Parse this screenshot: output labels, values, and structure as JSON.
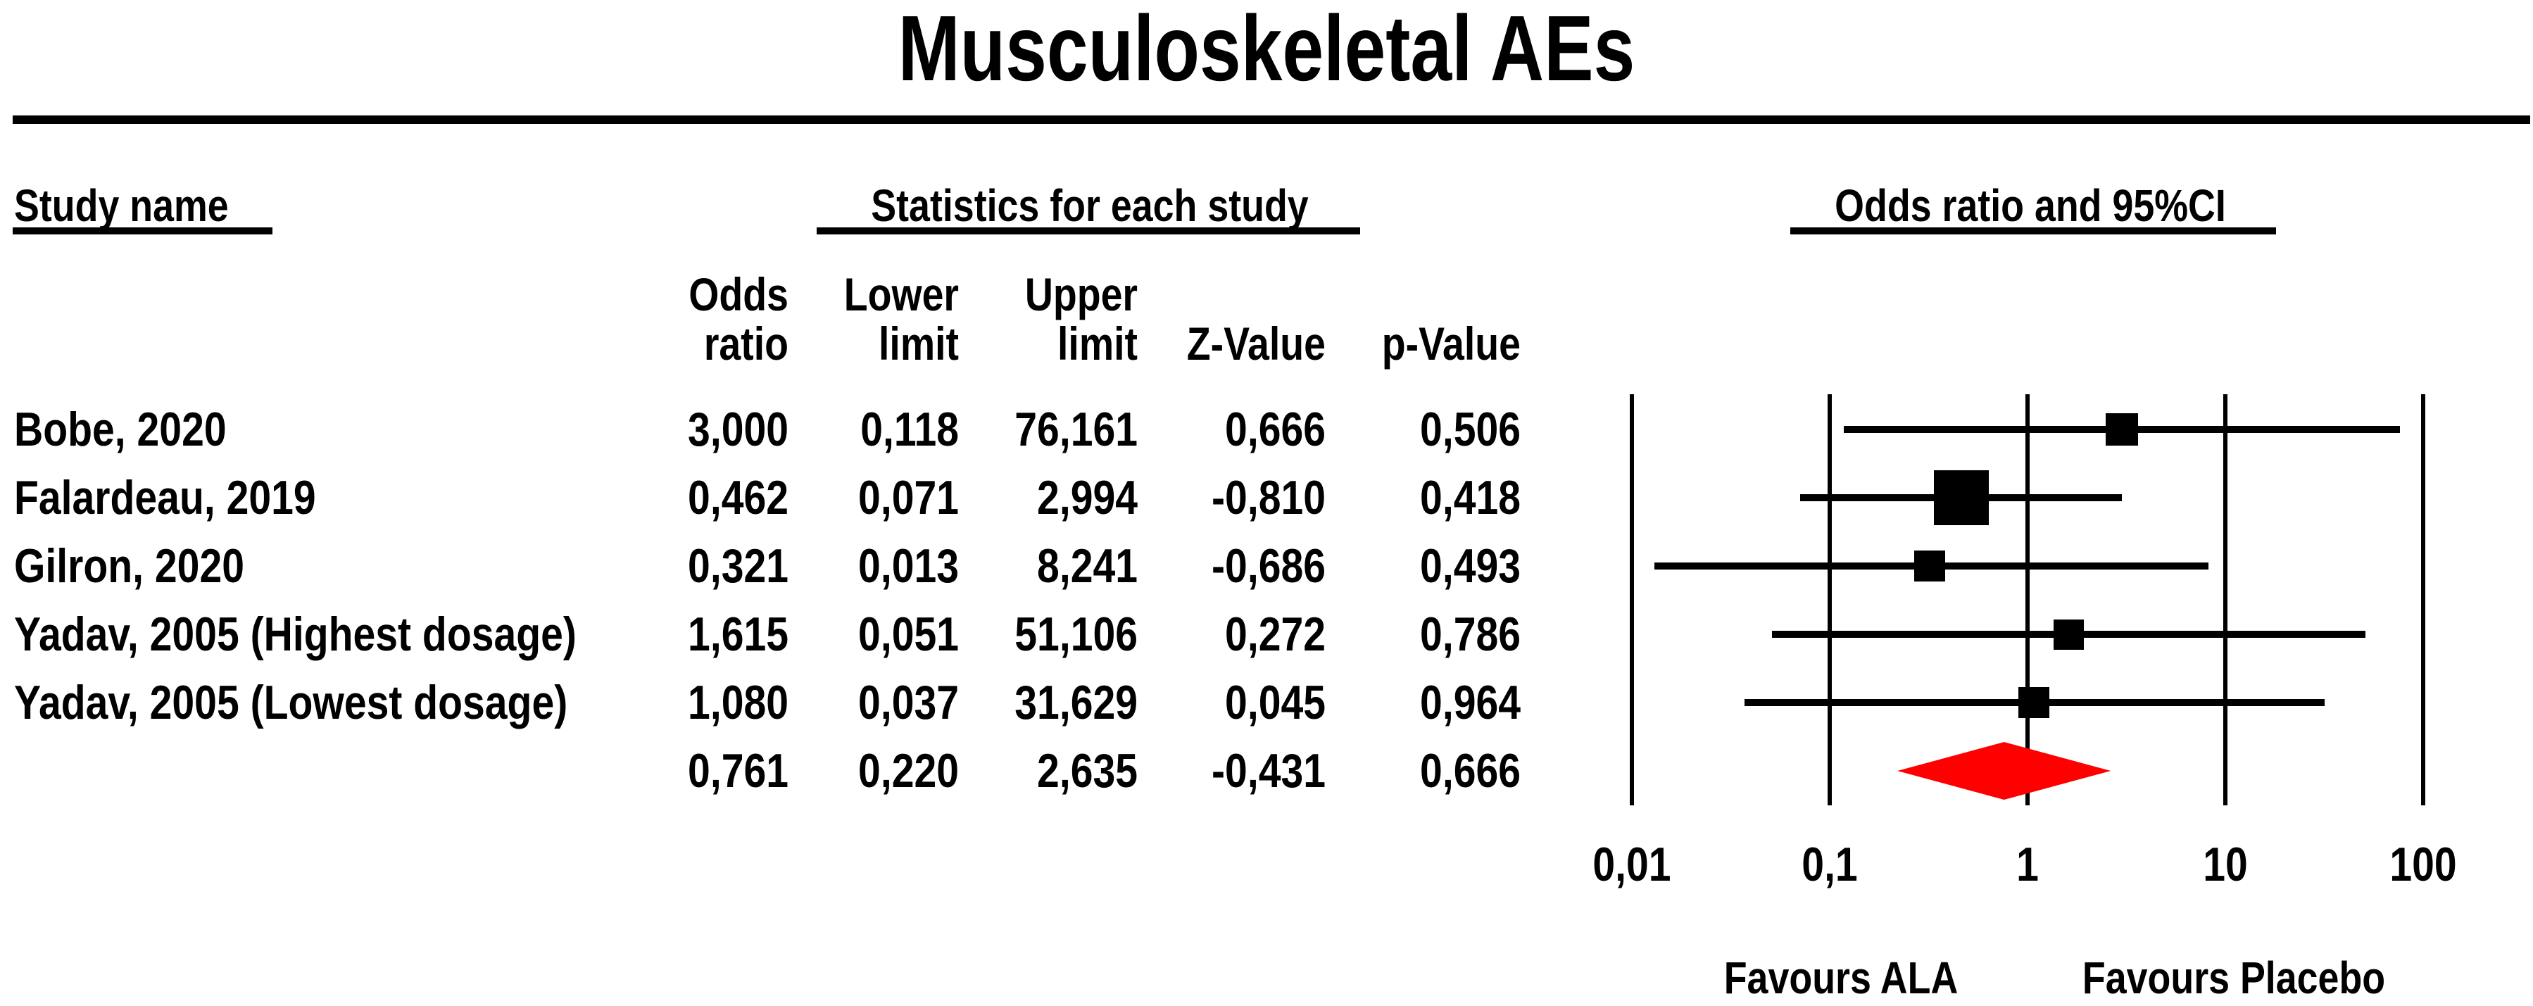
{
  "title": "Musculoskeletal AEs",
  "section_headers": {
    "study": "Study name",
    "statistics": "Statistics for each study",
    "plot": "Odds ratio and 95%CI"
  },
  "column_headers": [
    {
      "id": "odds-ratio",
      "line1": "Odds",
      "line2": "ratio"
    },
    {
      "id": "lower-limit",
      "line1": "Lower",
      "line2": "limit"
    },
    {
      "id": "upper-limit",
      "line1": "Upper",
      "line2": "limit"
    },
    {
      "id": "z-value",
      "line1": "",
      "line2": "Z-Value"
    },
    {
      "id": "p-value",
      "line1": "",
      "line2": "p-Value"
    }
  ],
  "chart_data": {
    "type": "forest",
    "title": "Musculoskeletal AEs",
    "x_scale": "log10",
    "x_range": [
      0.01,
      100
    ],
    "x_ticks": [
      {
        "label": "0,01",
        "value": 0.01
      },
      {
        "label": "0,1",
        "value": 0.1
      },
      {
        "label": "1",
        "value": 1
      },
      {
        "label": "10",
        "value": 10
      },
      {
        "label": "100",
        "value": 100
      }
    ],
    "grid": true,
    "footer_labels": {
      "left": "Favours ALA",
      "right": "Favours Placebo"
    },
    "marker_color": "#000000",
    "summary_color": "#ff0000",
    "studies": [
      {
        "name": "Bobe, 2020",
        "odds_ratio": 3.0,
        "lower_limit": 0.118,
        "upper_limit": 76.161,
        "z_value": 0.666,
        "p_value": 0.506,
        "display": {
          "odds_ratio": "3,000",
          "lower_limit": "0,118",
          "upper_limit": "76,161",
          "z_value": "0,666",
          "p_value": "0,506"
        },
        "marker_size": 46
      },
      {
        "name": "Falardeau, 2019",
        "odds_ratio": 0.462,
        "lower_limit": 0.071,
        "upper_limit": 2.994,
        "z_value": -0.81,
        "p_value": 0.418,
        "display": {
          "odds_ratio": "0,462",
          "lower_limit": "0,071",
          "upper_limit": "2,994",
          "z_value": "-0,810",
          "p_value": "0,418"
        },
        "marker_size": 78
      },
      {
        "name": "Gilron, 2020",
        "odds_ratio": 0.321,
        "lower_limit": 0.013,
        "upper_limit": 8.241,
        "z_value": -0.686,
        "p_value": 0.493,
        "display": {
          "odds_ratio": "0,321",
          "lower_limit": "0,013",
          "upper_limit": "8,241",
          "z_value": "-0,686",
          "p_value": "0,493"
        },
        "marker_size": 44
      },
      {
        "name": "Yadav, 2005 (Highest dosage)",
        "odds_ratio": 1.615,
        "lower_limit": 0.051,
        "upper_limit": 51.106,
        "z_value": 0.272,
        "p_value": 0.786,
        "display": {
          "odds_ratio": "1,615",
          "lower_limit": "0,051",
          "upper_limit": "51,106",
          "z_value": "0,272",
          "p_value": "0,786"
        },
        "marker_size": 43
      },
      {
        "name": "Yadav, 2005 (Lowest dosage)",
        "odds_ratio": 1.08,
        "lower_limit": 0.037,
        "upper_limit": 31.629,
        "z_value": 0.045,
        "p_value": 0.964,
        "display": {
          "odds_ratio": "1,080",
          "lower_limit": "0,037",
          "upper_limit": "31,629",
          "z_value": "0,045",
          "p_value": "0,964"
        },
        "marker_size": 44
      }
    ],
    "overall": {
      "name": "",
      "odds_ratio": 0.761,
      "lower_limit": 0.22,
      "upper_limit": 2.635,
      "z_value": -0.431,
      "p_value": 0.666,
      "display": {
        "odds_ratio": "0,761",
        "lower_limit": "0,220",
        "upper_limit": "2,635",
        "z_value": "-0,431",
        "p_value": "0,666"
      },
      "marker": "diamond"
    }
  }
}
